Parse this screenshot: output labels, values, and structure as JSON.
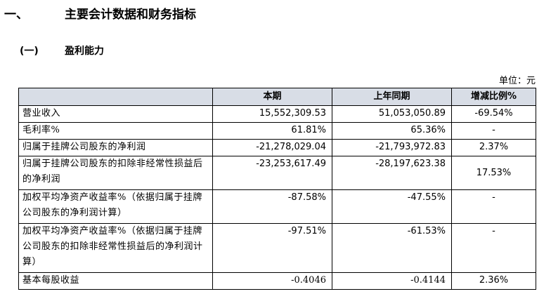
{
  "section": {
    "number": "一、",
    "title": "主要会计数据和财务指标"
  },
  "subsection": {
    "number": "(一)",
    "title": "盈利能力"
  },
  "unit_label": "单位：元",
  "table": {
    "headers": [
      "",
      "本期",
      "上年同期",
      "增减比例%"
    ],
    "rows": [
      {
        "label": "营业收入",
        "current": "15,552,309.53",
        "previous": "51,053,050.89",
        "change": "-69.54%"
      },
      {
        "label": "毛利率%",
        "current": "61.81%",
        "previous": "65.36%",
        "change": "-"
      },
      {
        "label": "归属于挂牌公司股东的净利润",
        "current": "-21,278,029.04",
        "previous": "-21,793,972.83",
        "change": "2.37%"
      },
      {
        "label": "归属于挂牌公司股东的扣除非经常性损益后的净利润",
        "current": "-23,253,617.49",
        "previous": "-28,197,623.38",
        "change": "17.53%"
      },
      {
        "label": "加权平均净资产收益率%（依据归属于挂牌公司股东的净利润计算）",
        "current": "-87.58%",
        "previous": "-47.55%",
        "change": "-"
      },
      {
        "label": "加权平均净资产收益率%（依据归属于挂牌公司股东的扣除非经常性损益后的净利润计算）",
        "current": "-97.51%",
        "previous": "-61.53%",
        "change": "-"
      },
      {
        "label": "基本每股收益",
        "current": "-0.4046",
        "previous": "-0.4144",
        "change": "2.36%"
      }
    ]
  }
}
